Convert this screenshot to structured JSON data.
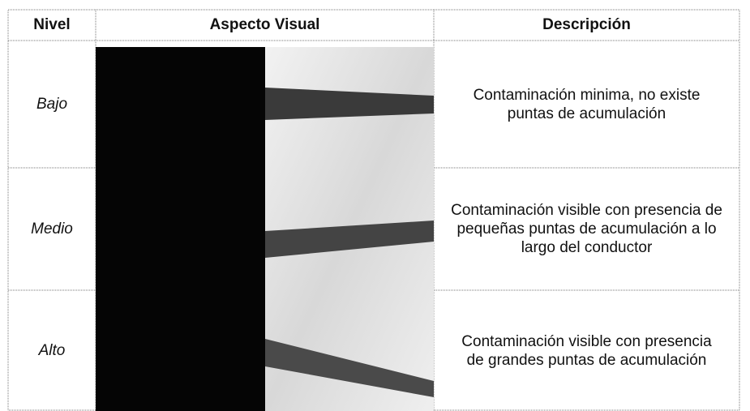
{
  "table": {
    "headers": [
      "Nivel",
      "Aspecto Visual",
      "Descripción"
    ],
    "rows": [
      {
        "level": "Bajo",
        "description": "Contaminación minima, no existe puntas de acumulación"
      },
      {
        "level": "Medio",
        "description": "Contaminación visible con presencia de pequeñas puntas de acumulación a lo largo del conductor"
      },
      {
        "level": "Alto",
        "description": "Contaminación visible con presencia de grandes puntas de acumulación"
      }
    ]
  }
}
